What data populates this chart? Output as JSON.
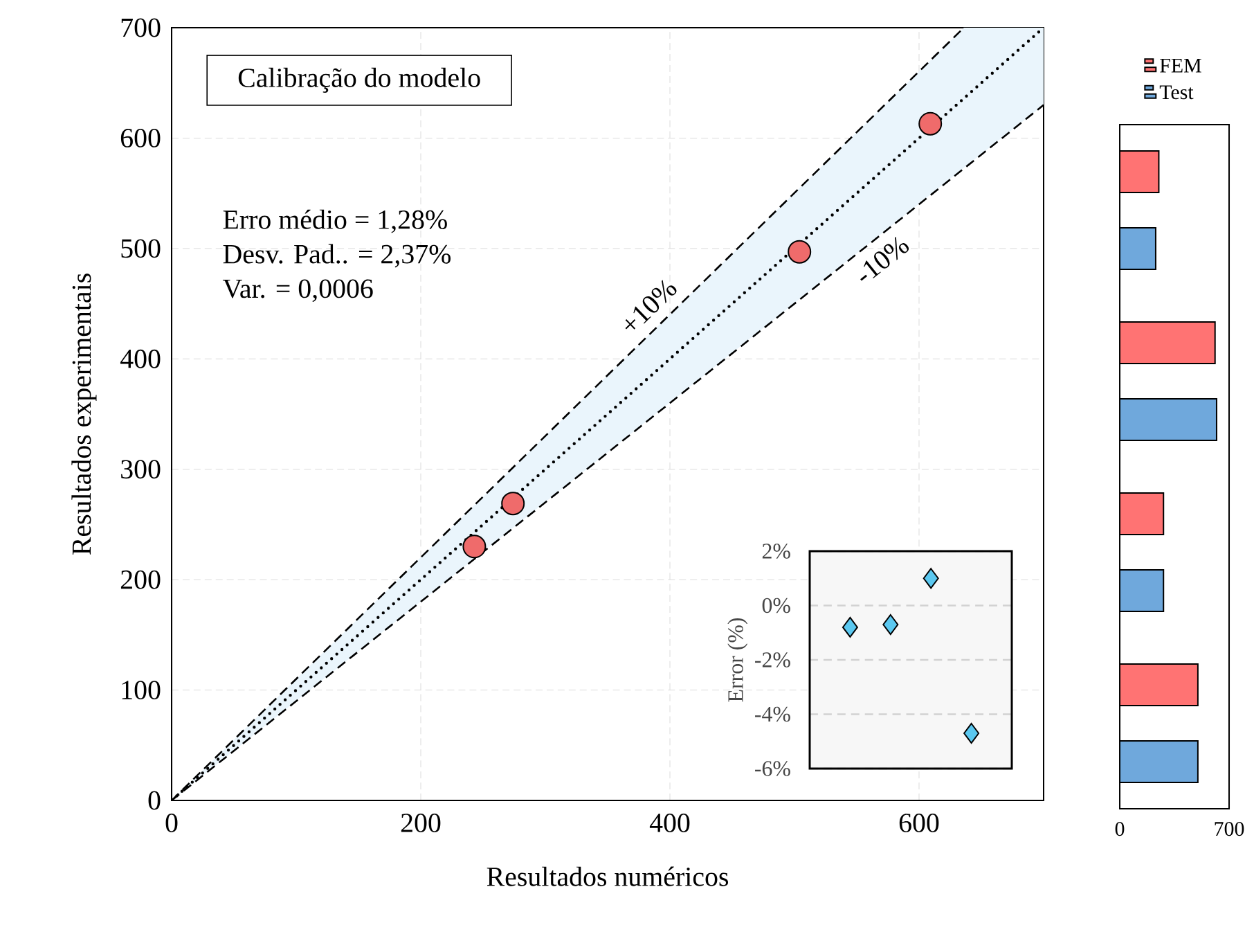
{
  "chart_data": [
    {
      "type": "scatter",
      "title": "Calibração do modelo",
      "xlabel": "Resultados numéricos",
      "ylabel": "Resultados experimentais",
      "annotations": [
        "Erro médio = 1,28%",
        "Desv. Pad.. = 2,37%",
        "Var. = 0,0006"
      ],
      "xlim": [
        0,
        700
      ],
      "ylim": [
        0,
        700
      ],
      "xticks": [
        0,
        200,
        400,
        600
      ],
      "yticks": [
        0,
        100,
        200,
        300,
        400,
        500,
        600,
        700
      ],
      "grid": true,
      "marker": "circle",
      "series": [
        {
          "type": "scatter",
          "color": "#ef6b6b",
          "x": [
            243,
            274,
            504,
            609
          ],
          "values": [
            230,
            269,
            497,
            613
          ]
        },
        {
          "type": "line",
          "color": "#000000",
          "line_style": "dotted",
          "marker": "none",
          "x": [
            0,
            636,
            700
          ],
          "values": [
            0,
            636,
            700
          ],
          "lower": [
            0,
            573,
            630
          ],
          "upper": [
            0,
            700,
            700
          ]
        },
        {
          "type": "line",
          "name": "+10%",
          "color": "#000000",
          "line_style": "dashed",
          "marker": "none",
          "x": [
            0,
            636
          ],
          "values": [
            0,
            700
          ]
        },
        {
          "type": "line",
          "name": "-10%",
          "color": "#000000",
          "line_style": "dashed",
          "marker": "none",
          "x": [
            0,
            700
          ],
          "values": [
            0,
            630
          ]
        }
      ]
    },
    {
      "type": "scatter",
      "ylabel": "Error (%)",
      "categories": [
        null,
        null,
        null,
        null
      ],
      "values": [
        -0.8,
        -0.7,
        1.0,
        -4.7
      ],
      "color": "#5bc8f0",
      "marker": "diamond",
      "ylim": [
        -6,
        2
      ],
      "yticks": [
        {
          "value": 2,
          "label": "2%"
        },
        {
          "value": 0,
          "label": "0%"
        },
        {
          "value": -2,
          "label": "-2%"
        },
        {
          "value": -4,
          "label": "-4%"
        },
        {
          "value": -6,
          "label": "-6%"
        }
      ],
      "grid": "y",
      "tick_labels": "y"
    },
    {
      "type": "bar",
      "orientation": "horizontal",
      "categories": [
        null,
        null,
        null,
        null
      ],
      "series": [
        {
          "name": "FEM",
          "color": "#ff7373",
          "values": [
            250,
            610,
            280,
            500
          ]
        },
        {
          "name": "Test",
          "color": "#6fa8dc",
          "values": [
            230,
            620,
            280,
            500
          ]
        }
      ],
      "xlim": [
        0,
        700
      ],
      "xticks": [
        0,
        700
      ],
      "legend": "top",
      "tick_labels": "x"
    }
  ]
}
